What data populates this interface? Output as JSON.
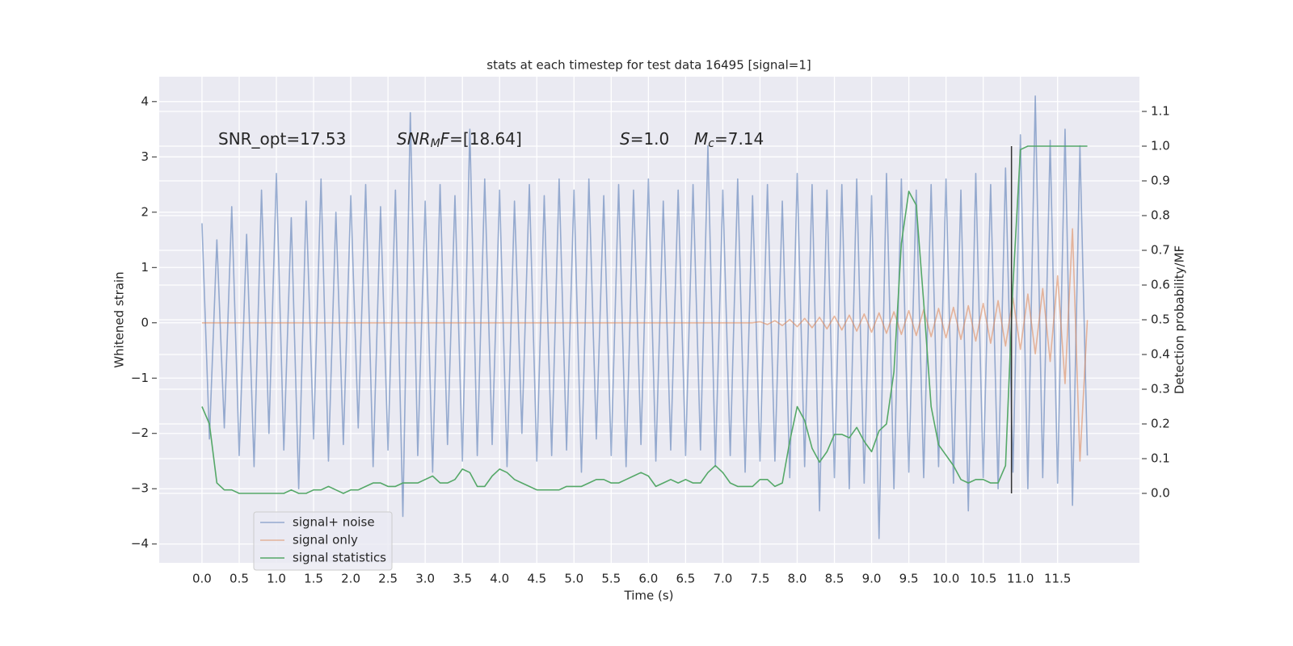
{
  "chart_data": {
    "type": "line",
    "title": "stats at each timestep for test data 16495 [signal=1]",
    "xlabel": "Time (s)",
    "ylabel": "Whitened strain",
    "y2label": "Detection probability/MF",
    "annotations": [
      {
        "parts": [
          {
            "text": "SNR_opt=17.53",
            "style": "normal"
          }
        ]
      },
      {
        "parts": [
          {
            "text": "SNR",
            "style": "italic"
          },
          {
            "text": "M",
            "style": "sub"
          },
          {
            "text": "F",
            "style": "italic"
          },
          {
            "text": "=[18.64]",
            "style": "normal"
          }
        ]
      },
      {
        "parts": [
          {
            "text": "S",
            "style": "italic"
          },
          {
            "text": "=1.0",
            "style": "normal"
          }
        ]
      },
      {
        "parts": [
          {
            "text": "M",
            "style": "italic"
          },
          {
            "text": "c",
            "style": "sub"
          },
          {
            "text": "=7.14",
            "style": "normal"
          }
        ]
      }
    ],
    "x": [
      0.0,
      0.1,
      0.2,
      0.3,
      0.4,
      0.5,
      0.6,
      0.7,
      0.8,
      0.9,
      1.0,
      1.1,
      1.2,
      1.3,
      1.4,
      1.5,
      1.6,
      1.7,
      1.8,
      1.9,
      2.0,
      2.1,
      2.2,
      2.3,
      2.4,
      2.5,
      2.6,
      2.7,
      2.8,
      2.9,
      3.0,
      3.1,
      3.2,
      3.3,
      3.4,
      3.5,
      3.6,
      3.7,
      3.8,
      3.9,
      4.0,
      4.1,
      4.2,
      4.3,
      4.4,
      4.5,
      4.6,
      4.7,
      4.8,
      4.9,
      5.0,
      5.1,
      5.2,
      5.3,
      5.4,
      5.5,
      5.6,
      5.7,
      5.8,
      5.9,
      6.0,
      6.1,
      6.2,
      6.3,
      6.4,
      6.5,
      6.6,
      6.7,
      6.8,
      6.9,
      7.0,
      7.1,
      7.2,
      7.3,
      7.4,
      7.5,
      7.6,
      7.7,
      7.8,
      7.9,
      8.0,
      8.1,
      8.2,
      8.3,
      8.4,
      8.5,
      8.6,
      8.7,
      8.8,
      8.9,
      9.0,
      9.1,
      9.2,
      9.3,
      9.4,
      9.5,
      9.6,
      9.7,
      9.8,
      9.9,
      10.0,
      10.1,
      10.2,
      10.3,
      10.4,
      10.5,
      10.6,
      10.7,
      10.8,
      10.9,
      11.0,
      11.1,
      11.2,
      11.3,
      11.4,
      11.5,
      11.6,
      11.7,
      11.8,
      11.9
    ],
    "series": [
      {
        "name": "signal+ noise",
        "color": "#4c72b0",
        "opacity": 0.55,
        "values": [
          1.8,
          -2.1,
          1.5,
          -1.9,
          2.1,
          -2.4,
          1.6,
          -2.6,
          2.4,
          -2.0,
          2.7,
          -2.3,
          1.9,
          -3.0,
          2.2,
          -2.1,
          2.6,
          -2.5,
          2.0,
          -2.2,
          2.3,
          -1.9,
          2.5,
          -2.6,
          2.1,
          -2.3,
          2.4,
          -3.5,
          3.8,
          -2.4,
          2.2,
          -2.7,
          2.5,
          -2.2,
          2.3,
          -2.5,
          3.5,
          -2.4,
          2.6,
          -2.2,
          2.4,
          -2.6,
          2.2,
          -2.0,
          2.5,
          -2.5,
          2.3,
          -2.4,
          2.6,
          -2.3,
          2.4,
          -2.7,
          2.6,
          -2.1,
          2.3,
          -2.4,
          2.5,
          -2.6,
          2.4,
          -2.2,
          2.6,
          -2.5,
          2.2,
          -2.3,
          2.4,
          -2.4,
          2.5,
          -2.3,
          3.2,
          -2.6,
          2.4,
          -2.4,
          2.6,
          -2.7,
          2.3,
          -2.5,
          2.5,
          -2.5,
          2.2,
          -2.8,
          2.7,
          -2.6,
          2.5,
          -3.4,
          2.4,
          -2.8,
          2.5,
          -3.0,
          2.6,
          -2.9,
          2.3,
          -3.9,
          2.7,
          -3.0,
          2.6,
          -2.7,
          2.4,
          -2.8,
          2.5,
          -2.6,
          2.6,
          -2.9,
          2.4,
          -3.4,
          2.7,
          -2.8,
          2.5,
          -3.0,
          2.8,
          -2.7,
          3.4,
          -3.0,
          4.1,
          -2.8,
          3.3,
          -2.9,
          3.5,
          -3.3,
          3.2,
          -2.4
        ]
      },
      {
        "name": "signal only",
        "color": "#dd8452",
        "opacity": 0.55,
        "values": [
          0,
          0,
          0,
          0,
          0,
          0,
          0,
          0,
          0,
          0,
          0,
          0,
          0,
          0,
          0,
          0,
          0,
          0,
          0,
          0,
          0,
          0,
          0,
          0,
          0,
          0,
          0,
          0,
          0,
          0,
          0,
          0,
          0,
          0,
          0,
          0,
          0,
          0,
          0,
          0,
          0,
          0,
          0,
          0,
          0,
          0,
          0,
          0,
          0,
          0,
          0,
          0,
          0,
          0,
          0,
          0,
          0,
          0,
          0,
          0,
          0,
          0,
          0,
          0,
          0,
          0,
          0,
          0,
          0,
          0,
          0,
          0,
          0,
          0,
          0,
          0.02,
          -0.03,
          0.04,
          -0.05,
          0.06,
          -0.07,
          0.08,
          -0.09,
          0.1,
          -0.11,
          0.12,
          -0.13,
          0.14,
          -0.15,
          0.16,
          -0.17,
          0.18,
          -0.19,
          0.2,
          -0.21,
          0.22,
          -0.23,
          0.24,
          -0.25,
          0.26,
          -0.27,
          0.28,
          -0.3,
          0.31,
          -0.33,
          0.35,
          -0.37,
          0.4,
          -0.42,
          0.45,
          -0.48,
          0.52,
          -0.56,
          0.62,
          -0.7,
          0.85,
          -1.1,
          1.7,
          -2.5,
          0.05
        ]
      },
      {
        "name": "signal statistics",
        "color": "#55a868",
        "opacity": 1,
        "axis": "y2",
        "values": [
          0.25,
          0.2,
          0.03,
          0.01,
          0.01,
          0.0,
          0.0,
          0.0,
          0.0,
          0.0,
          0.0,
          0.0,
          0.01,
          0.0,
          0.0,
          0.01,
          0.01,
          0.02,
          0.01,
          0.0,
          0.01,
          0.01,
          0.02,
          0.03,
          0.03,
          0.02,
          0.02,
          0.03,
          0.03,
          0.03,
          0.04,
          0.05,
          0.03,
          0.03,
          0.04,
          0.07,
          0.06,
          0.02,
          0.02,
          0.05,
          0.07,
          0.06,
          0.04,
          0.03,
          0.02,
          0.01,
          0.01,
          0.01,
          0.01,
          0.02,
          0.02,
          0.02,
          0.03,
          0.04,
          0.04,
          0.03,
          0.03,
          0.04,
          0.05,
          0.06,
          0.05,
          0.02,
          0.03,
          0.04,
          0.03,
          0.04,
          0.03,
          0.03,
          0.06,
          0.08,
          0.06,
          0.03,
          0.02,
          0.02,
          0.02,
          0.04,
          0.04,
          0.02,
          0.03,
          0.15,
          0.25,
          0.21,
          0.13,
          0.09,
          0.12,
          0.17,
          0.17,
          0.16,
          0.19,
          0.15,
          0.12,
          0.18,
          0.2,
          0.35,
          0.72,
          0.87,
          0.83,
          0.55,
          0.25,
          0.14,
          0.11,
          0.08,
          0.04,
          0.03,
          0.04,
          0.04,
          0.03,
          0.03,
          0.08,
          0.6,
          0.99,
          1.0,
          1.0,
          1.0,
          1.0,
          1.0,
          1.0,
          1.0,
          1.0,
          1.0
        ]
      }
    ],
    "vline": {
      "x": 10.88,
      "y2min": 0,
      "y2max": 1,
      "color": "#333333"
    },
    "xlim": [
      -0.575,
      12.6
    ],
    "ylim": [
      -4.34,
      4.45
    ],
    "y2lim": [
      -0.2,
      1.2
    ],
    "xticks": [
      {
        "value": 0,
        "label": "0.0"
      },
      {
        "value": 0.5,
        "label": "0.5"
      },
      {
        "value": 1,
        "label": "1.0"
      },
      {
        "value": 1.5,
        "label": "1.5"
      },
      {
        "value": 2,
        "label": "2.0"
      },
      {
        "value": 2.5,
        "label": "2.5"
      },
      {
        "value": 3,
        "label": "3.0"
      },
      {
        "value": 3.5,
        "label": "3.5"
      },
      {
        "value": 4,
        "label": "4.0"
      },
      {
        "value": 4.5,
        "label": "4.5"
      },
      {
        "value": 5,
        "label": "5.0"
      },
      {
        "value": 5.5,
        "label": "5.5"
      },
      {
        "value": 6,
        "label": "6.0"
      },
      {
        "value": 6.5,
        "label": "6.5"
      },
      {
        "value": 7,
        "label": "7.0"
      },
      {
        "value": 7.5,
        "label": "7.5"
      },
      {
        "value": 8,
        "label": "8.0"
      },
      {
        "value": 8.5,
        "label": "8.5"
      },
      {
        "value": 9,
        "label": "9.0"
      },
      {
        "value": 9.5,
        "label": "9.5"
      },
      {
        "value": 10,
        "label": "10.0"
      },
      {
        "value": 10.5,
        "label": "10.5"
      },
      {
        "value": 11,
        "label": "11.0"
      },
      {
        "value": 11.5,
        "label": "11.5"
      }
    ],
    "yticks": [
      {
        "value": -4,
        "label": "−4"
      },
      {
        "value": -3,
        "label": "−3"
      },
      {
        "value": -2,
        "label": "−2"
      },
      {
        "value": -1,
        "label": "−1"
      },
      0,
      1,
      2,
      3,
      4
    ],
    "y2ticks": [
      {
        "value": 0,
        "label": "0.0"
      },
      {
        "value": 0.1,
        "label": "0.1"
      },
      {
        "value": 0.2,
        "label": "0.2"
      },
      {
        "value": 0.3,
        "label": "0.3"
      },
      {
        "value": 0.4,
        "label": "0.4"
      },
      {
        "value": 0.5,
        "label": "0.5"
      },
      {
        "value": 0.6,
        "label": "0.6"
      },
      {
        "value": 0.7,
        "label": "0.7"
      },
      {
        "value": 0.8,
        "label": "0.8"
      },
      {
        "value": 0.9,
        "label": "0.9"
      },
      {
        "value": 1,
        "label": "1.0"
      },
      {
        "value": 1.1,
        "label": "1.1"
      }
    ],
    "grid": true,
    "legend": "lower left"
  }
}
